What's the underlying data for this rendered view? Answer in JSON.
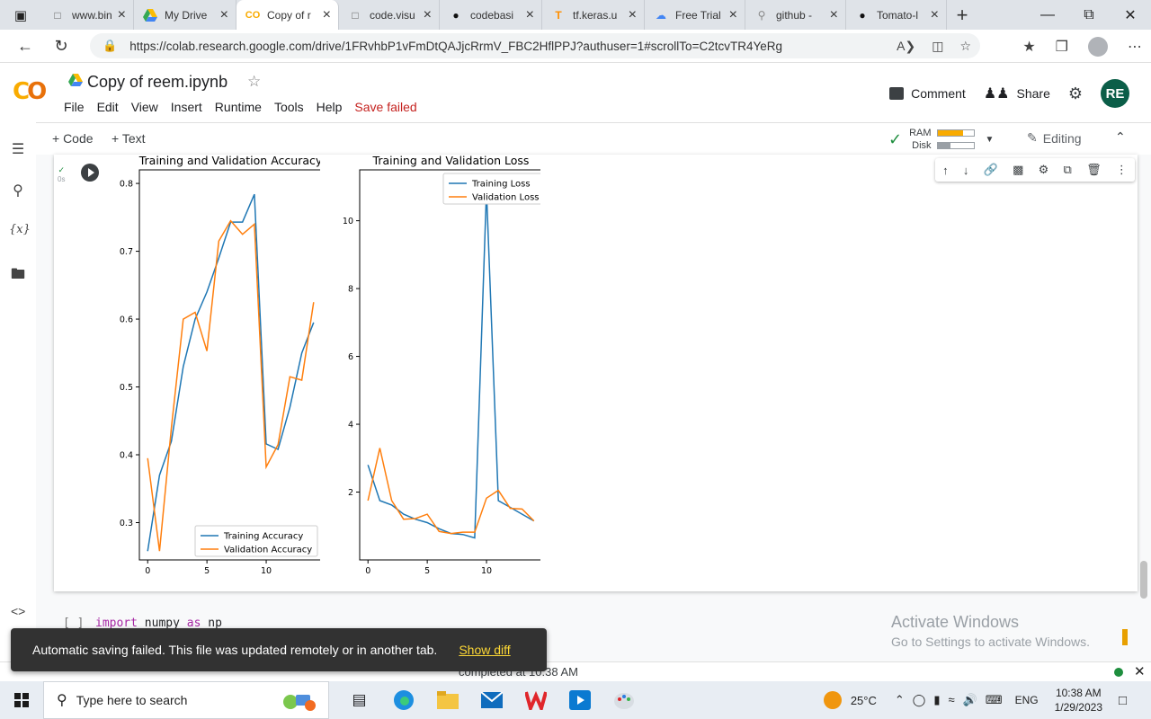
{
  "browser": {
    "tabs": [
      {
        "title": "www.bing",
        "favicon": "page-icon",
        "active": false
      },
      {
        "title": "My Drive",
        "favicon": "drive-icon",
        "active": false
      },
      {
        "title": "Copy of r",
        "favicon": "colab-icon",
        "active": true
      },
      {
        "title": "code.visu",
        "favicon": "page-icon",
        "active": false
      },
      {
        "title": "codebasi",
        "favicon": "github-icon",
        "active": false
      },
      {
        "title": "tf.keras.u",
        "favicon": "tensorflow-icon",
        "active": false
      },
      {
        "title": "Free Trial",
        "favicon": "gcloud-icon",
        "active": false
      },
      {
        "title": "github -",
        "favicon": "search-icon",
        "active": false
      },
      {
        "title": "Tomato-l",
        "favicon": "github-icon",
        "active": false
      }
    ],
    "url": "https://colab.research.google.com/drive/1FRvhbP1vFmDtQAJjcRrmV_FBC2HflPPJ?authuser=1#scrollTo=C2tcvTR4YeRg"
  },
  "colab": {
    "logo": "CO",
    "title": "Copy of reem.ipynb",
    "menu": [
      "File",
      "Edit",
      "View",
      "Insert",
      "Runtime",
      "Tools",
      "Help"
    ],
    "save_status": "Save failed",
    "comment_label": "Comment",
    "share_label": "Share",
    "avatar_initials": "RE",
    "add_code": "+ Code",
    "add_text": "+ Text",
    "ram_label": "RAM",
    "disk_label": "Disk",
    "ram_fill": 0.72,
    "disk_fill": 0.35,
    "editing_label": "Editing",
    "cell_time": "0s",
    "code_line": {
      "bracket": "[ ]",
      "kw1": "import",
      "mod": "numpy",
      "kw2": "as",
      "alias": "np"
    },
    "status_text": "completed at 10:38 AM"
  },
  "toast": {
    "message": "Automatic saving failed. This file was updated remotely or in another tab.",
    "action": "Show diff"
  },
  "watermark": {
    "line1": "Activate Windows",
    "line2": "Go to Settings to activate Windows."
  },
  "taskbar": {
    "search_placeholder": "Type here to search",
    "temperature": "25°C",
    "language": "ENG",
    "time": "10:38 AM",
    "date": "1/29/2023"
  },
  "chart_data": [
    {
      "type": "line",
      "title": "Training and Validation Accuracy",
      "xlim": [
        -0.7,
        14.7
      ],
      "ylim": [
        0.245,
        0.82
      ],
      "xticks": [
        0,
        5,
        10
      ],
      "yticks": [
        0.3,
        0.4,
        0.5,
        0.6,
        0.7,
        0.8
      ],
      "legend_position": "lower-right",
      "series": [
        {
          "name": "Training Accuracy",
          "color": "#1f77b4",
          "x": [
            0,
            1,
            2,
            3,
            4,
            5,
            6,
            7,
            8,
            9,
            10,
            11,
            12,
            13,
            14
          ],
          "y": [
            0.258,
            0.37,
            0.42,
            0.53,
            0.6,
            0.64,
            0.69,
            0.743,
            0.743,
            0.784,
            0.416,
            0.408,
            0.47,
            0.55,
            0.595
          ]
        },
        {
          "name": "Validation Accuracy",
          "color": "#ff7f0e",
          "x": [
            0,
            1,
            2,
            3,
            4,
            5,
            6,
            7,
            8,
            9,
            10,
            11,
            12,
            13,
            14
          ],
          "y": [
            0.395,
            0.258,
            0.44,
            0.6,
            0.61,
            0.553,
            0.715,
            0.745,
            0.725,
            0.74,
            0.382,
            0.415,
            0.515,
            0.51,
            0.625
          ]
        }
      ]
    },
    {
      "type": "line",
      "title": "Training and Validation Loss",
      "xlim": [
        -0.7,
        14.7
      ],
      "ylim": [
        0.0,
        11.5
      ],
      "xticks": [
        0,
        5,
        10
      ],
      "yticks": [
        2,
        4,
        6,
        8,
        10
      ],
      "legend_position": "upper-right",
      "series": [
        {
          "name": "Training Loss",
          "color": "#1f77b4",
          "x": [
            0,
            1,
            2,
            3,
            4,
            5,
            6,
            7,
            8,
            9,
            10,
            11,
            12,
            13,
            14
          ],
          "y": [
            2.8,
            1.75,
            1.62,
            1.35,
            1.2,
            1.1,
            0.92,
            0.78,
            0.75,
            0.65,
            10.9,
            1.75,
            1.55,
            1.35,
            1.15
          ]
        },
        {
          "name": "Validation Loss",
          "color": "#ff7f0e",
          "x": [
            0,
            1,
            2,
            3,
            4,
            5,
            6,
            7,
            8,
            9,
            10,
            11,
            12,
            13,
            14
          ],
          "y": [
            1.75,
            3.3,
            1.75,
            1.2,
            1.22,
            1.35,
            0.84,
            0.78,
            0.82,
            0.82,
            1.82,
            2.05,
            1.52,
            1.5,
            1.15
          ]
        }
      ]
    }
  ]
}
